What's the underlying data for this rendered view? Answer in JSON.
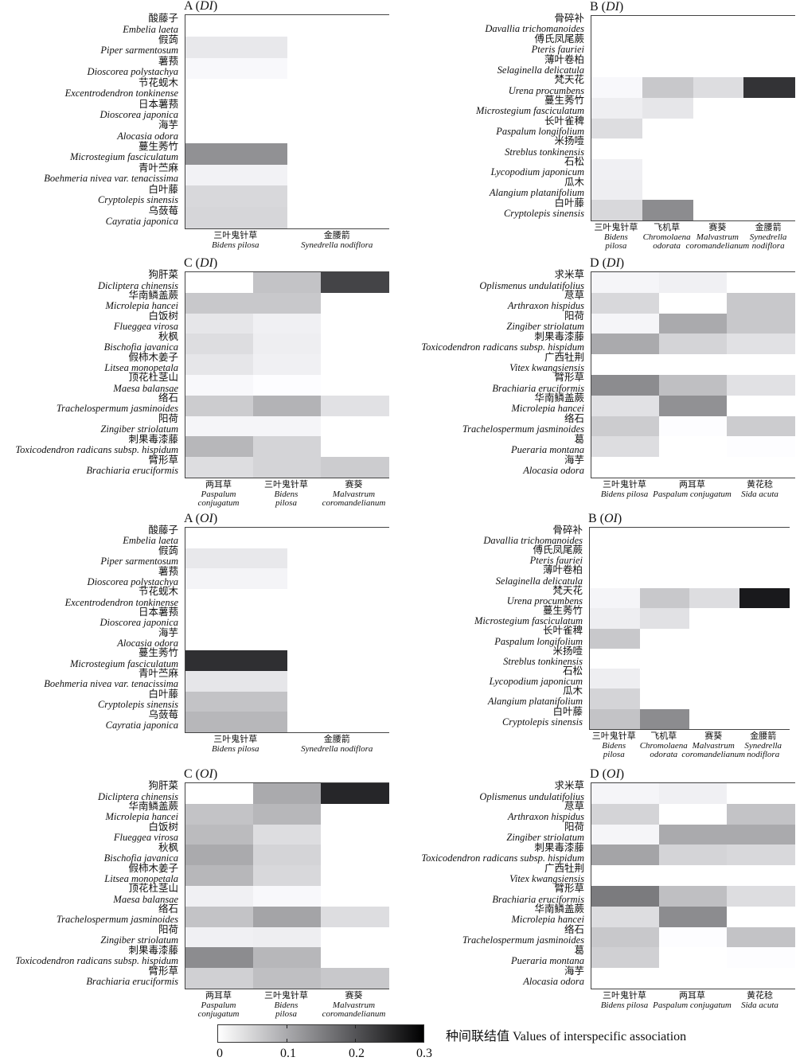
{
  "chart_data": [
    {
      "type": "heatmap",
      "panel": "A",
      "index": "DI",
      "rows": [
        {
          "cn": "酸藤子",
          "la": "Embelia laeta"
        },
        {
          "cn": "假蒟",
          "la": "Piper sarmentosum"
        },
        {
          "cn": "薯蓣",
          "la": "Dioscorea polystachya"
        },
        {
          "cn": "节花蚬木",
          "la": "Excentrodendron tonkinense"
        },
        {
          "cn": "日本薯蓣",
          "la": "Dioscorea japonica"
        },
        {
          "cn": "海芋",
          "la": "Alocasia odora"
        },
        {
          "cn": "蔓生莠竹",
          "la": "Microstegium fasciculatum"
        },
        {
          "cn": "青叶苎麻",
          "la": "Boehmeria nivea var. tenacissima"
        },
        {
          "cn": "白叶藤",
          "la": "Cryptolepis sinensis"
        },
        {
          "cn": "乌蔹莓",
          "la": "Cayratia japonica"
        }
      ],
      "columns": [
        {
          "cn": "三叶鬼针草",
          "la": [
            "Bidens pilosa"
          ]
        },
        {
          "cn": "金腰箭",
          "la": [
            "Synedrella nodiflora"
          ]
        }
      ],
      "values": [
        [
          0,
          0
        ],
        [
          0.027,
          0
        ],
        [
          0.008,
          0
        ],
        [
          0,
          0
        ],
        [
          0,
          0
        ],
        [
          0,
          0
        ],
        [
          0.13,
          0
        ],
        [
          0.015,
          0
        ],
        [
          0.046,
          0
        ],
        [
          0.048,
          0
        ]
      ]
    },
    {
      "type": "heatmap",
      "panel": "B",
      "index": "DI",
      "rows": [
        {
          "cn": "骨碎补",
          "la": "Davallia trichomanoides"
        },
        {
          "cn": "傅氏凤尾蕨",
          "la": "Pteris fauriei"
        },
        {
          "cn": "薄叶卷柏",
          "la": "Selaginella delicatula"
        },
        {
          "cn": "梵天花",
          "la": "Urena procumbens"
        },
        {
          "cn": "蔓生莠竹",
          "la": "Microstegium fasciculatum"
        },
        {
          "cn": "长叶雀稗",
          "la": "Paspalum longifolium"
        },
        {
          "cn": "米扬噎",
          "la": "Streblus tonkinensis"
        },
        {
          "cn": "石松",
          "la": "Lycopodium japonicum"
        },
        {
          "cn": "瓜木",
          "la": "Alangium platanifolium"
        },
        {
          "cn": "白叶藤",
          "la": "Cryptolepis sinensis"
        }
      ],
      "columns": [
        {
          "cn": "三叶鬼针草",
          "la": [
            "Bidens",
            "pilosa"
          ]
        },
        {
          "cn": "飞机草",
          "la": [
            "Chromolaena",
            "odorata"
          ]
        },
        {
          "cn": "赛葵",
          "la": [
            "Malvastrum",
            "coromandelianum"
          ]
        },
        {
          "cn": "金腰箭",
          "la": [
            "Synedrella",
            "nodiflora"
          ]
        }
      ],
      "values": [
        [
          0,
          0,
          0,
          0
        ],
        [
          0,
          0,
          0,
          0
        ],
        [
          0,
          0,
          0,
          0
        ],
        [
          0.008,
          0.065,
          0.04,
          0.24
        ],
        [
          0.02,
          0.03,
          0,
          0
        ],
        [
          0.04,
          0,
          0,
          0
        ],
        [
          0,
          0,
          0,
          0
        ],
        [
          0.018,
          0,
          0,
          0
        ],
        [
          0.02,
          0,
          0,
          0
        ],
        [
          0.046,
          0.135,
          0,
          0
        ]
      ]
    },
    {
      "type": "heatmap",
      "panel": "C",
      "index": "DI",
      "rows": [
        {
          "cn": "狗肝菜",
          "la": "Dicliptera chinensis"
        },
        {
          "cn": "华南鳞盖蕨",
          "la": "Microlepia hancei"
        },
        {
          "cn": "白饭树",
          "la": "Flueggea virosa"
        },
        {
          "cn": "秋枫",
          "la": "Bischofia javanica"
        },
        {
          "cn": "假柿木姜子",
          "la": "Litsea monopetala"
        },
        {
          "cn": "顶花杜茎山",
          "la": "Maesa balansae"
        },
        {
          "cn": "络石",
          "la": "Trachelospermum jasminoides"
        },
        {
          "cn": "阳荷",
          "la": "Zingiber striolatum"
        },
        {
          "cn": "刺果毒漆藤",
          "la": "Toxicodendron radicans subsp. hispidum"
        },
        {
          "cn": "臂形草",
          "la": "Brachiaria eruciformis"
        }
      ],
      "columns": [
        {
          "cn": "两耳草",
          "la": [
            "Paspalum",
            "conjugatum"
          ]
        },
        {
          "cn": "三叶鬼针草",
          "la": [
            "Bidens",
            "pilosa"
          ]
        },
        {
          "cn": "赛葵",
          "la": [
            "Malvastrum",
            "coromandelianum"
          ]
        }
      ],
      "values": [
        [
          0,
          0.07,
          0.22
        ],
        [
          0.065,
          0.065,
          0
        ],
        [
          0.03,
          0.018,
          0
        ],
        [
          0.04,
          0.02,
          0
        ],
        [
          0.03,
          0.018,
          0
        ],
        [
          0.008,
          0.002,
          0
        ],
        [
          0.06,
          0.09,
          0.035
        ],
        [
          0.012,
          0.012,
          0
        ],
        [
          0.085,
          0.05,
          0
        ],
        [
          0.04,
          0.05,
          0.06
        ]
      ]
    },
    {
      "type": "heatmap",
      "panel": "D",
      "index": "DI",
      "rows": [
        {
          "cn": "求米草",
          "la": "Oplismenus undulatifolius"
        },
        {
          "cn": "荩草",
          "la": "Arthraxon hispidus"
        },
        {
          "cn": "阳荷",
          "la": "Zingiber striolatum"
        },
        {
          "cn": "刺果毒漆藤",
          "la": "Toxicodendron radicans subsp. hispidum"
        },
        {
          "cn": "广西牡荆",
          "la": "Vitex kwangsiensis"
        },
        {
          "cn": "臂形草",
          "la": "Brachiaria eruciformis"
        },
        {
          "cn": "华南鳞盖蕨",
          "la": "Microlepia hancei"
        },
        {
          "cn": "络石",
          "la": "Trachelospermum jasminoides"
        },
        {
          "cn": "葛",
          "la": "Pueraria montana"
        },
        {
          "cn": "海芋",
          "la": "Alocasia odora"
        }
      ],
      "columns": [
        {
          "cn": "三叶鬼针草",
          "la": [
            "Bidens pilosa"
          ]
        },
        {
          "cn": "两耳草",
          "la": [
            "Paspalum conjugatum"
          ]
        },
        {
          "cn": "黄花稔",
          "la": [
            "Sida acuta"
          ]
        }
      ],
      "values": [
        [
          0.012,
          0.018,
          0
        ],
        [
          0.046,
          0,
          0.065
        ],
        [
          0.012,
          0.1,
          0.065
        ],
        [
          0.1,
          0.05,
          0.035
        ],
        [
          0,
          0,
          0
        ],
        [
          0.135,
          0.075,
          0.035
        ],
        [
          0.035,
          0.13,
          0
        ],
        [
          0.06,
          0.002,
          0.06
        ],
        [
          0.04,
          0,
          0.002
        ],
        [
          0,
          0,
          0
        ]
      ]
    },
    {
      "type": "heatmap",
      "panel": "A",
      "index": "OI",
      "rows": [
        {
          "cn": "酸藤子",
          "la": "Embelia laeta"
        },
        {
          "cn": "假蒟",
          "la": "Piper sarmentosum"
        },
        {
          "cn": "薯蓣",
          "la": "Dioscorea polystachya"
        },
        {
          "cn": "节花蚬木",
          "la": "Excentrodendron tonkinense"
        },
        {
          "cn": "日本薯蓣",
          "la": "Dioscorea japonica"
        },
        {
          "cn": "海芋",
          "la": "Alocasia odora"
        },
        {
          "cn": "蔓生莠竹",
          "la": "Microstegium fasciculatum"
        },
        {
          "cn": "青叶苎麻",
          "la": "Boehmeria nivea var. tenacissima"
        },
        {
          "cn": "白叶藤",
          "la": "Cryptolepis sinensis"
        },
        {
          "cn": "乌蔹莓",
          "la": "Cayratia japonica"
        }
      ],
      "columns": [
        {
          "cn": "三叶鬼针草",
          "la": [
            "Bidens pilosa"
          ]
        },
        {
          "cn": "金腰箭",
          "la": [
            "Synedrella nodiflora"
          ]
        }
      ],
      "values": [
        [
          0,
          0
        ],
        [
          0.027,
          0
        ],
        [
          0.013,
          0
        ],
        [
          0,
          0
        ],
        [
          0,
          0
        ],
        [
          0,
          0
        ],
        [
          0.245,
          0
        ],
        [
          0.03,
          0
        ],
        [
          0.07,
          0
        ],
        [
          0.085,
          0
        ]
      ]
    },
    {
      "type": "heatmap",
      "panel": "B",
      "index": "OI",
      "rows": [
        {
          "cn": "骨碎补",
          "la": "Davallia trichomanoides"
        },
        {
          "cn": "傅氏凤尾蕨",
          "la": "Pteris fauriei"
        },
        {
          "cn": "薄叶卷柏",
          "la": "Selaginella delicatula"
        },
        {
          "cn": "梵天花",
          "la": "Urena procumbens"
        },
        {
          "cn": "蔓生莠竹",
          "la": "Microstegium fasciculatum"
        },
        {
          "cn": "长叶雀稗",
          "la": "Paspalum longifolium"
        },
        {
          "cn": "米扬噎",
          "la": "Streblus tonkinensis"
        },
        {
          "cn": "石松",
          "la": "Lycopodium japonicum"
        },
        {
          "cn": "瓜木",
          "la": "Alangium platanifolium"
        },
        {
          "cn": "白叶藤",
          "la": "Cryptolepis sinensis"
        }
      ],
      "columns": [
        {
          "cn": "三叶鬼针草",
          "la": [
            "Bidens",
            "pilosa"
          ]
        },
        {
          "cn": "飞机草",
          "la": [
            "Chromolaena",
            "odorata"
          ]
        },
        {
          "cn": "赛葵",
          "la": [
            "Malvastrum",
            "coromandelianum"
          ]
        },
        {
          "cn": "金腰箭",
          "la": [
            "Synedrella",
            "nodiflora"
          ]
        }
      ],
      "values": [
        [
          0,
          0,
          0,
          0
        ],
        [
          0,
          0,
          0,
          0
        ],
        [
          0,
          0,
          0,
          0
        ],
        [
          0.012,
          0.065,
          0.04,
          0.27
        ],
        [
          0.02,
          0.035,
          0,
          0
        ],
        [
          0.065,
          0,
          0,
          0
        ],
        [
          0,
          0,
          0,
          0
        ],
        [
          0.02,
          0,
          0,
          0
        ],
        [
          0.05,
          0,
          0,
          0
        ],
        [
          0.07,
          0.135,
          0,
          0
        ]
      ]
    },
    {
      "type": "heatmap",
      "panel": "C",
      "index": "OI",
      "rows": [
        {
          "cn": "狗肝菜",
          "la": "Dicliptera chinensis"
        },
        {
          "cn": "华南鳞盖蕨",
          "la": "Microlepia hancei"
        },
        {
          "cn": "白饭树",
          "la": "Flueggea virosa"
        },
        {
          "cn": "秋枫",
          "la": "Bischofia javanica"
        },
        {
          "cn": "假柿木姜子",
          "la": "Litsea monopetala"
        },
        {
          "cn": "顶花杜茎山",
          "la": "Maesa balansae"
        },
        {
          "cn": "络石",
          "la": "Trachelospermum jasminoides"
        },
        {
          "cn": "阳荷",
          "la": "Zingiber striolatum"
        },
        {
          "cn": "刺果毒漆藤",
          "la": "Toxicodendron radicans subsp. hispidum"
        },
        {
          "cn": "臂形草",
          "la": "Brachiaria eruciformis"
        }
      ],
      "columns": [
        {
          "cn": "两耳草",
          "la": [
            "Paspalum",
            "conjugatum"
          ]
        },
        {
          "cn": "三叶鬼针草",
          "la": [
            "Bidens",
            "pilosa"
          ]
        },
        {
          "cn": "赛葵",
          "la": [
            "Malvastrum",
            "coromandelianum"
          ]
        }
      ],
      "values": [
        [
          0,
          0.1,
          0.255
        ],
        [
          0.07,
          0.085,
          0
        ],
        [
          0.08,
          0.04,
          0
        ],
        [
          0.1,
          0.05,
          0
        ],
        [
          0.085,
          0.046,
          0
        ],
        [
          0.018,
          0.008,
          0
        ],
        [
          0.07,
          0.107,
          0.04
        ],
        [
          0.018,
          0.02,
          0
        ],
        [
          0.135,
          0.085,
          0
        ],
        [
          0.055,
          0.075,
          0.065
        ]
      ]
    },
    {
      "type": "heatmap",
      "panel": "D",
      "index": "OI",
      "rows": [
        {
          "cn": "求米草",
          "la": "Oplismenus undulatifolius"
        },
        {
          "cn": "荩草",
          "la": "Arthraxon hispidus"
        },
        {
          "cn": "阳荷",
          "la": "Zingiber striolatum"
        },
        {
          "cn": "刺果毒漆藤",
          "la": "Toxicodendron radicans subsp. hispidum"
        },
        {
          "cn": "广西牡荆",
          "la": "Vitex kwangsiensis"
        },
        {
          "cn": "臂形草",
          "la": "Brachiaria eruciformis"
        },
        {
          "cn": "华南鳞盖蕨",
          "la": "Microlepia hancei"
        },
        {
          "cn": "络石",
          "la": "Trachelospermum jasminoides"
        },
        {
          "cn": "葛",
          "la": "Pueraria montana"
        },
        {
          "cn": "海芋",
          "la": "Alocasia odora"
        }
      ],
      "columns": [
        {
          "cn": "三叶鬼针草",
          "la": [
            "Bidens pilosa"
          ]
        },
        {
          "cn": "两耳草",
          "la": [
            "Paspalum conjugatum"
          ]
        },
        {
          "cn": "黄花稔",
          "la": [
            "Sida acuta"
          ]
        }
      ],
      "values": [
        [
          0.012,
          0.018,
          0
        ],
        [
          0.05,
          0,
          0.07
        ],
        [
          0.012,
          0.1,
          0.1
        ],
        [
          0.107,
          0.05,
          0.046
        ],
        [
          0,
          0,
          0
        ],
        [
          0.155,
          0.075,
          0.04
        ],
        [
          0.04,
          0.135,
          0
        ],
        [
          0.065,
          0.002,
          0.07
        ],
        [
          0.055,
          0,
          0.002
        ],
        [
          0,
          0,
          0
        ]
      ]
    }
  ],
  "colorbar": {
    "label": "种间联结值 Values of interspecific association",
    "range": [
      0,
      0.3
    ],
    "ticks": [
      "0",
      "0.1",
      "0.2",
      "0.3"
    ],
    "colors": [
      "#ffffff",
      "#000000"
    ]
  }
}
